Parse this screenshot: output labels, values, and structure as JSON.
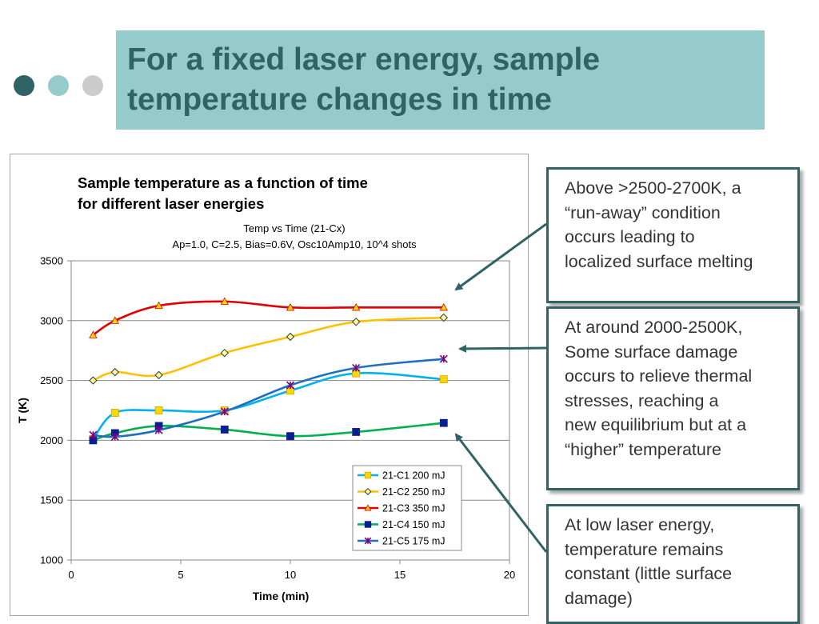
{
  "slide": {
    "title_lines": [
      "For a fixed laser energy, sample",
      "temperature changes in time"
    ],
    "dots": [
      {
        "name": "dot-dark",
        "color": "#2f6366"
      },
      {
        "name": "dot-medium",
        "color": "#96cbcc"
      },
      {
        "name": "dot-light",
        "color": "#cccccc"
      }
    ],
    "callouts": [
      {
        "lines": [
          "Above >2500-2700K, a",
          "“run-away” condition",
          "occurs leading to",
          "localized surface melting"
        ]
      },
      {
        "lines": [
          "At around 2000-2500K,",
          "Some surface damage",
          "occurs to relieve thermal",
          "stresses, reaching a",
          "new equilibrium but at  a",
          "“higher” temperature"
        ]
      },
      {
        "lines": [
          "At low laser energy,",
          "temperature remains",
          "constant (little surface",
          "damage)"
        ]
      }
    ],
    "accent_color": "#2f6366"
  },
  "chart_data": {
    "type": "line",
    "heading": "Sample temperature as a function of time for different laser energies",
    "heading_lines": [
      "Sample temperature as a function of time",
      "for different laser energies"
    ],
    "title": "Temp vs Time (21-Cx)",
    "subtitle": "Ap=1.0, C=2.5, Bias=0.6V, Osc10Amp10, 10^4 shots",
    "xlabel": "Time (min)",
    "ylabel": "T (K)",
    "xlim": [
      0,
      20
    ],
    "ylim": [
      1000,
      3500
    ],
    "xticks": [
      0,
      5,
      10,
      15,
      20
    ],
    "yticks": [
      1000,
      1500,
      2000,
      2500,
      3000,
      3500
    ],
    "grid": "horizontal",
    "legend_position": "bottom-right",
    "series": [
      {
        "name": "21-C1 200 mJ",
        "color": "#00b0f0",
        "marker": "square",
        "marker_color": "#ffd700",
        "x": [
          1,
          2,
          4,
          7,
          10,
          13,
          17
        ],
        "y": [
          2010,
          2230,
          2250,
          2250,
          2415,
          2560,
          2510
        ]
      },
      {
        "name": "21-C2 250 mJ",
        "color": "#ffc000",
        "marker": "diamond",
        "marker_color": "#ffff99",
        "x": [
          1,
          2,
          4,
          7,
          10,
          13,
          17
        ],
        "y": [
          2500,
          2570,
          2545,
          2730,
          2865,
          2990,
          3025
        ]
      },
      {
        "name": "21-C3 350 mJ",
        "color": "#e00000",
        "marker": "triangle",
        "marker_color": "#ffd700",
        "x": [
          1,
          2,
          4,
          7,
          10,
          13,
          17
        ],
        "y": [
          2880,
          3000,
          3125,
          3160,
          3110,
          3110,
          3110
        ]
      },
      {
        "name": "21-C4 150 mJ",
        "color": "#00b050",
        "marker": "square",
        "marker_color": "#0a1f8f",
        "x": [
          1,
          2,
          4,
          7,
          10,
          13,
          17
        ],
        "y": [
          2000,
          2060,
          2120,
          2090,
          2035,
          2070,
          2145
        ]
      },
      {
        "name": "21-C5 175 mJ",
        "color": "#1f6fc0",
        "marker": "star",
        "marker_color": "#800080",
        "x": [
          1,
          2,
          4,
          7,
          10,
          13,
          17
        ],
        "y": [
          2045,
          2030,
          2085,
          2240,
          2460,
          2605,
          2680
        ]
      }
    ]
  }
}
